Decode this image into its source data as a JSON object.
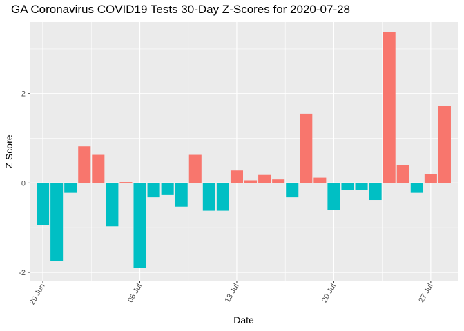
{
  "chart_data": {
    "type": "bar",
    "title": "GA Coronavirus COVID19 Tests 30-Day Z-Scores for 2020-07-28",
    "xlabel": "Date",
    "ylabel": "Z Score",
    "ylim": [
      -2.2,
      3.6
    ],
    "yticks": [
      -2,
      0,
      2
    ],
    "xticks": [
      {
        "label": "29 Jun",
        "date": "2020-06-29"
      },
      {
        "label": "06 Jul",
        "date": "2020-07-06"
      },
      {
        "label": "13 Jul",
        "date": "2020-07-13"
      },
      {
        "label": "20 Jul",
        "date": "2020-07-20"
      },
      {
        "label": "27 Jul",
        "date": "2020-07-27"
      }
    ],
    "colors": {
      "positive": "#F8766D",
      "negative": "#00BFC4",
      "panel": "#EBEBEB",
      "grid": "#FFFFFF"
    },
    "grid": true,
    "legend": "none",
    "x": [
      "2020-06-29",
      "2020-06-30",
      "2020-07-01",
      "2020-07-02",
      "2020-07-03",
      "2020-07-04",
      "2020-07-05",
      "2020-07-06",
      "2020-07-07",
      "2020-07-08",
      "2020-07-09",
      "2020-07-10",
      "2020-07-11",
      "2020-07-12",
      "2020-07-13",
      "2020-07-14",
      "2020-07-15",
      "2020-07-16",
      "2020-07-17",
      "2020-07-18",
      "2020-07-19",
      "2020-07-20",
      "2020-07-21",
      "2020-07-22",
      "2020-07-23",
      "2020-07-24",
      "2020-07-25",
      "2020-07-26",
      "2020-07-27",
      "2020-07-28"
    ],
    "values": [
      -0.95,
      -1.75,
      -0.22,
      0.82,
      0.63,
      -0.97,
      0.02,
      -1.9,
      -0.32,
      -0.27,
      -0.53,
      0.63,
      -0.62,
      -0.62,
      0.28,
      0.06,
      0.18,
      0.08,
      -0.32,
      1.55,
      0.12,
      -0.6,
      -0.16,
      -0.16,
      -0.38,
      3.38,
      0.4,
      -0.22,
      0.2,
      1.73
    ]
  }
}
